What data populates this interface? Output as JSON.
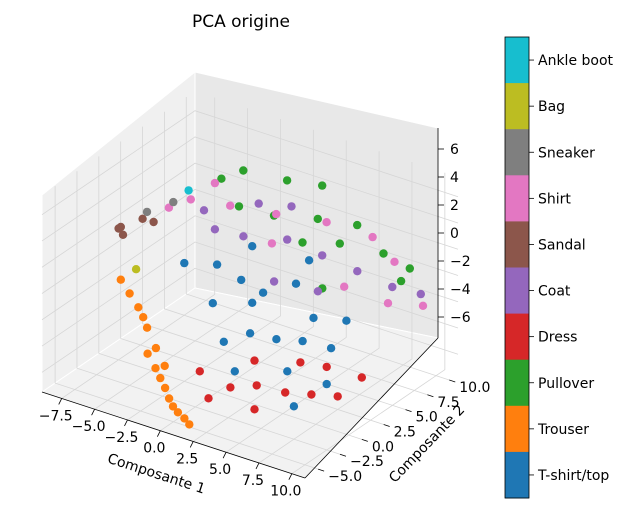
{
  "chart_data": {
    "type": "scatter",
    "projection": "3d",
    "title": "PCA origine",
    "xlabel": "Composante 1",
    "ylabel": "Composante 2",
    "zlabel": "",
    "xlim": [
      -9,
      11
    ],
    "ylim": [
      -6.5,
      11
    ],
    "zlim": [
      -7.5,
      7.5
    ],
    "x_ticks": [
      "−7.5",
      "−5.0",
      "−2.5",
      "0.0",
      "2.5",
      "5.0",
      "7.5",
      "10.0"
    ],
    "y_ticks": [
      "−5.0",
      "−2.5",
      "0.0",
      "2.5",
      "5.0",
      "7.5",
      "10.0"
    ],
    "z_ticks": [
      "6",
      "4",
      "2",
      "0",
      "−2",
      "−4",
      "−6"
    ],
    "grid": true,
    "colorbar": {
      "labels": [
        "Ankle boot",
        "Bag",
        "Sneaker",
        "Shirt",
        "Sandal",
        "Coat",
        "Dress",
        "Pullover",
        "Trouser",
        "T-shirt/top"
      ],
      "colors": [
        "#17becf",
        "#bcbd22",
        "#7f7f7f",
        "#e377c2",
        "#8c564b",
        "#9467bd",
        "#d62728",
        "#2ca02c",
        "#ff7f0e",
        "#1f77b4"
      ]
    },
    "series": [
      {
        "name": "T-shirt/top",
        "color": "#1f77b4",
        "points": [
          [
            2.0,
            1.0,
            -0.5
          ],
          [
            3.5,
            -1.5,
            -1.2
          ],
          [
            0.5,
            2.0,
            0.3
          ],
          [
            4.5,
            0.0,
            -2.0
          ],
          [
            1.5,
            3.0,
            -0.8
          ],
          [
            5.5,
            1.5,
            -2.5
          ],
          [
            2.5,
            -3.0,
            -1.5
          ],
          [
            6.0,
            -1.0,
            -3.5
          ],
          [
            3.0,
            4.5,
            -0.3
          ],
          [
            7.0,
            2.5,
            -3.0
          ],
          [
            -1.0,
            1.5,
            1.2
          ],
          [
            4.0,
            -4.0,
            -2.8
          ],
          [
            8.0,
            0.5,
            -4.5
          ],
          [
            1.0,
            -2.0,
            0.5
          ],
          [
            5.0,
            3.5,
            -1.8
          ],
          [
            6.5,
            5.0,
            -2.2
          ],
          [
            -2.5,
            0.0,
            1.5
          ],
          [
            3.0,
            6.0,
            0.8
          ],
          [
            7.5,
            -2.5,
            -5.0
          ],
          [
            0.0,
            4.0,
            1.8
          ]
        ]
      },
      {
        "name": "Trouser",
        "color": "#ff7f0e",
        "points": [
          [
            -2.0,
            -4.0,
            -3.0
          ],
          [
            -1.0,
            -5.0,
            -4.5
          ],
          [
            0.0,
            -5.5,
            -5.5
          ],
          [
            -3.0,
            -3.5,
            -2.0
          ],
          [
            1.0,
            -6.0,
            -6.0
          ],
          [
            -4.0,
            -3.0,
            -1.0
          ],
          [
            -1.5,
            -4.8,
            -4.0
          ],
          [
            0.5,
            -5.8,
            -5.8
          ],
          [
            -2.5,
            -4.2,
            -3.5
          ],
          [
            -5.0,
            -2.5,
            -0.5
          ],
          [
            2.0,
            -6.2,
            -6.5
          ],
          [
            -3.5,
            -3.2,
            -1.5
          ],
          [
            -0.5,
            -5.2,
            -5.0
          ],
          [
            -6.0,
            -2.0,
            0.0
          ],
          [
            1.5,
            -6.0,
            -6.3
          ],
          [
            -1.0,
            -4.5,
            -3.8
          ]
        ]
      },
      {
        "name": "Pullover",
        "color": "#2ca02c",
        "points": [
          [
            1.0,
            5.0,
            4.0
          ],
          [
            3.0,
            7.0,
            3.5
          ],
          [
            -1.0,
            4.0,
            4.5
          ],
          [
            5.0,
            6.5,
            2.5
          ],
          [
            0.0,
            8.0,
            5.0
          ],
          [
            7.0,
            8.5,
            1.5
          ],
          [
            2.0,
            9.0,
            4.8
          ],
          [
            -2.0,
            6.0,
            6.0
          ],
          [
            4.0,
            10.0,
            2.0
          ],
          [
            6.0,
            3.0,
            1.0
          ],
          [
            9.0,
            7.5,
            0.5
          ],
          [
            -3.0,
            5.0,
            5.5
          ],
          [
            3.5,
            4.5,
            3.0
          ],
          [
            8.0,
            10.0,
            0.0
          ]
        ]
      },
      {
        "name": "Dress",
        "color": "#d62728",
        "points": [
          [
            5.0,
            -3.0,
            -4.0
          ],
          [
            6.5,
            -2.0,
            -4.5
          ],
          [
            4.0,
            -4.5,
            -3.8
          ],
          [
            7.5,
            -0.5,
            -5.0
          ],
          [
            3.0,
            -5.5,
            -4.5
          ],
          [
            8.5,
            1.0,
            -5.5
          ],
          [
            5.5,
            -4.0,
            -5.2
          ],
          [
            2.0,
            -5.0,
            -3.0
          ],
          [
            6.0,
            0.5,
            -3.5
          ],
          [
            9.0,
            3.0,
            -4.8
          ],
          [
            4.5,
            -2.5,
            -2.5
          ],
          [
            7.0,
            2.0,
            -4.2
          ]
        ]
      },
      {
        "name": "Coat",
        "color": "#9467bd",
        "points": [
          [
            0.0,
            3.0,
            3.0
          ],
          [
            2.0,
            5.0,
            2.5
          ],
          [
            -1.5,
            2.0,
            3.5
          ],
          [
            4.0,
            6.0,
            1.5
          ],
          [
            1.0,
            7.0,
            3.8
          ],
          [
            6.0,
            7.0,
            0.5
          ],
          [
            -3.0,
            3.0,
            4.0
          ],
          [
            3.0,
            2.0,
            1.0
          ],
          [
            8.0,
            8.0,
            -0.5
          ],
          [
            5.0,
            4.0,
            0.0
          ],
          [
            9.5,
            9.0,
            -1.0
          ],
          [
            -0.5,
            5.5,
            4.2
          ]
        ]
      },
      {
        "name": "Sandal",
        "color": "#8c564b",
        "points": [
          [
            -7.0,
            -0.5,
            3.0
          ],
          [
            -6.0,
            0.5,
            3.5
          ],
          [
            -7.5,
            0.0,
            2.5
          ],
          [
            -5.5,
            1.0,
            3.2
          ],
          [
            -6.5,
            -1.0,
            2.8
          ]
        ]
      },
      {
        "name": "Shirt",
        "color": "#e377c2",
        "points": [
          [
            -4.0,
            3.0,
            4.5
          ],
          [
            -2.0,
            4.5,
            4.0
          ],
          [
            0.5,
            6.0,
            3.5
          ],
          [
            3.0,
            8.0,
            2.8
          ],
          [
            -5.0,
            2.0,
            4.0
          ],
          [
            5.5,
            9.5,
            1.8
          ],
          [
            7.5,
            9.0,
            0.8
          ],
          [
            1.5,
            4.0,
            2.5
          ],
          [
            -3.5,
            5.0,
            5.0
          ],
          [
            9.0,
            6.0,
            -0.5
          ],
          [
            10.0,
            8.5,
            -1.5
          ],
          [
            6.0,
            5.5,
            0.0
          ]
        ]
      },
      {
        "name": "Sneaker",
        "color": "#7f7f7f",
        "points": [
          [
            -6.0,
            1.0,
            3.8
          ],
          [
            -5.0,
            2.5,
            4.2
          ]
        ]
      },
      {
        "name": "Bag",
        "color": "#bcbd22",
        "points": [
          [
            -6.5,
            0.5,
            -0.5
          ]
        ]
      },
      {
        "name": "Ankle boot",
        "color": "#17becf",
        "points": [
          [
            -4.5,
            3.5,
            4.8
          ]
        ]
      }
    ]
  }
}
